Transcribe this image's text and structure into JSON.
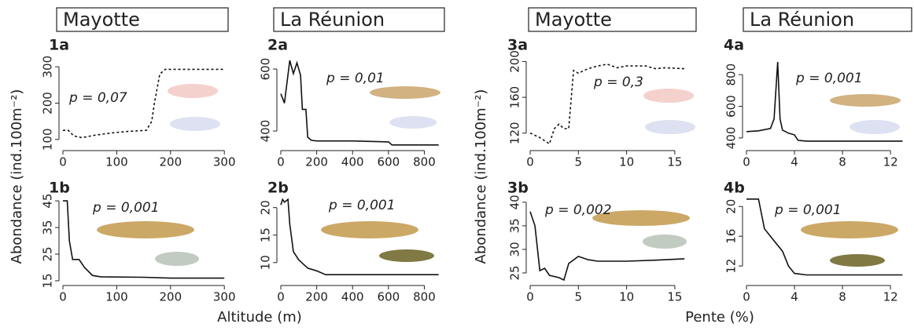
{
  "column_titles": [
    "Mayotte",
    "La Réunion",
    "Mayotte",
    "La Réunion"
  ],
  "y_axis_label": "Abondance (ind.100m⁻²)",
  "x_axis_labels": [
    "Altitude (m)",
    "Pente (%)"
  ],
  "chart_data": [
    {
      "type": "line",
      "label": "1a",
      "annotation": "p = 0,07",
      "line_style": "dotted",
      "color": "#111111",
      "x": [
        0,
        10,
        20,
        35,
        60,
        90,
        120,
        155,
        165,
        170,
        180,
        190,
        300
      ],
      "values": [
        125,
        125,
        110,
        105,
        112,
        118,
        122,
        125,
        150,
        200,
        280,
        293,
        293
      ],
      "xlim": [
        0,
        307
      ],
      "ylim": [
        78,
        322
      ],
      "xticks": [
        0,
        100,
        200,
        300
      ],
      "yticks": [
        100,
        200,
        300
      ]
    },
    {
      "type": "line",
      "label": "2a",
      "annotation": "p = 0,01",
      "line_style": "solid",
      "color": "#111111",
      "x": [
        0,
        20,
        50,
        70,
        90,
        110,
        120,
        140,
        150,
        170,
        200,
        300,
        400,
        600,
        620,
        880
      ],
      "values": [
        520,
        490,
        628,
        585,
        620,
        580,
        470,
        470,
        380,
        370,
        368,
        368,
        368,
        365,
        355,
        355
      ],
      "xlim": [
        0,
        890
      ],
      "ylim": [
        347,
        633
      ],
      "xticks": [
        0,
        200,
        400,
        600,
        800
      ],
      "yticks": [
        400,
        600
      ]
    },
    {
      "type": "line",
      "label": "3a",
      "annotation": "p = 0,3",
      "line_style": "dotted",
      "color": "#111111",
      "x": [
        0,
        1,
        2,
        2.5,
        3,
        3.5,
        4,
        4.5,
        5,
        6,
        7,
        8,
        9,
        10,
        12,
        13,
        14,
        16
      ],
      "values": [
        120,
        115,
        108,
        125,
        130,
        125,
        125,
        190,
        187,
        192,
        195,
        197,
        193,
        195,
        195,
        192,
        193,
        192
      ],
      "xlim": [
        0,
        16.8
      ],
      "ylim": [
        104,
        203
      ],
      "xticks": [
        0,
        5,
        10,
        15
      ],
      "yticks": [
        120,
        160,
        200
      ]
    },
    {
      "type": "line",
      "label": "4a",
      "annotation": "p = 0,001",
      "line_style": "solid",
      "color": "#111111",
      "x": [
        0,
        1,
        2,
        2.3,
        2.6,
        2.8,
        3,
        3.5,
        4,
        4.3,
        5,
        13
      ],
      "values": [
        440,
        445,
        460,
        520,
        880,
        520,
        450,
        430,
        420,
        385,
        380,
        380
      ],
      "xlim": [
        0,
        13.5
      ],
      "ylim": [
        340,
        900
      ],
      "xticks": [
        0,
        4,
        8,
        12
      ],
      "yticks": [
        400,
        600,
        800
      ]
    },
    {
      "type": "line",
      "label": "1b",
      "annotation": "p = 0,001",
      "line_style": "solid",
      "color": "#111111",
      "x": [
        0,
        8,
        12,
        18,
        30,
        40,
        55,
        70,
        150,
        200,
        300
      ],
      "values": [
        45,
        45,
        30,
        23,
        23,
        20,
        17,
        16.5,
        16.3,
        16,
        16
      ],
      "xlim": [
        0,
        307
      ],
      "ylim": [
        14.4,
        46.8
      ],
      "xticks": [
        0,
        100,
        200,
        300
      ],
      "yticks": [
        15,
        25,
        35,
        45
      ]
    },
    {
      "type": "line",
      "label": "2b",
      "annotation": "p = 0,001",
      "line_style": "solid",
      "color": "#111111",
      "x": [
        0,
        10,
        20,
        40,
        50,
        70,
        100,
        150,
        200,
        250,
        880
      ],
      "values": [
        20.5,
        21.5,
        21,
        21.5,
        17,
        12,
        10.5,
        9,
        8.5,
        7.8,
        7.8
      ],
      "xlim": [
        0,
        890
      ],
      "ylim": [
        6.4,
        22.1
      ],
      "xticks": [
        0,
        200,
        400,
        600,
        800
      ],
      "yticks": [
        10,
        15,
        20
      ]
    },
    {
      "type": "line",
      "label": "3b",
      "annotation": "p = 0,002",
      "line_style": "solid",
      "color": "#111111",
      "x": [
        0,
        0.5,
        1,
        1.5,
        2,
        3,
        3.5,
        4,
        5,
        6,
        7,
        10,
        13,
        16
      ],
      "values": [
        38,
        35,
        25.5,
        26,
        24.5,
        24,
        23.5,
        27,
        28.5,
        27.8,
        27.5,
        27.5,
        27.7,
        28
      ],
      "xlim": [
        0,
        16.8
      ],
      "ylim": [
        23,
        41.3
      ],
      "xticks": [
        0,
        5,
        10,
        15
      ],
      "yticks": [
        25,
        30,
        35,
        40
      ]
    },
    {
      "type": "line",
      "label": "4b",
      "annotation": "p = 0,001",
      "line_style": "solid",
      "color": "#111111",
      "x": [
        0,
        1,
        1.5,
        2,
        2.5,
        3,
        3.5,
        4,
        5,
        13
      ],
      "values": [
        21,
        21,
        17,
        16,
        15,
        14,
        12,
        11,
        10.8,
        10.8
      ],
      "xlim": [
        0,
        13.5
      ],
      "ylim": [
        9.8,
        21.4
      ],
      "xticks": [
        0,
        4,
        8,
        12
      ],
      "yticks": [
        12,
        16,
        20
      ]
    }
  ]
}
